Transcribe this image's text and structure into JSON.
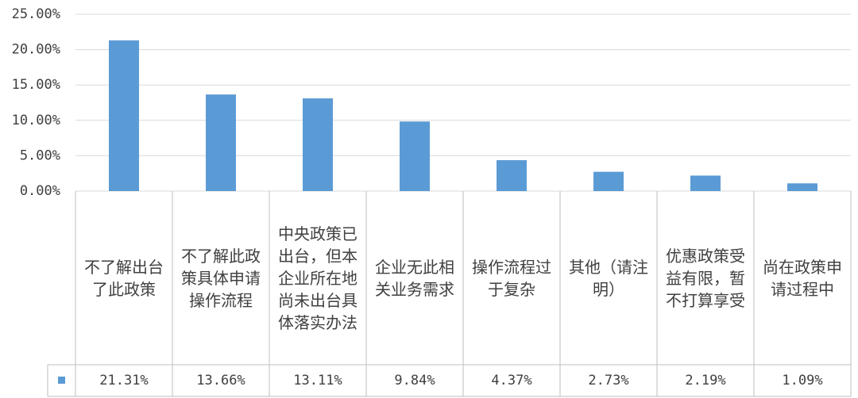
{
  "chart_data": {
    "type": "bar",
    "categories": [
      "不了解出台了此政策",
      "不了解此政策具体申请操作流程",
      "中央政策已出台，但本企业所在地尚未出台具体落实办法",
      "企业无此相关业务需求",
      "操作流程过于复杂",
      "其他（请注明）",
      "优惠政策受益有限，暂不打算享受",
      "尚在政策申请过程中"
    ],
    "values": [
      21.31,
      13.66,
      13.11,
      9.84,
      4.37,
      2.73,
      2.19,
      1.09
    ],
    "value_labels": [
      "21.31%",
      "13.66%",
      "13.11%",
      "9.84%",
      "4.37%",
      "2.73%",
      "2.19%",
      "1.09%"
    ],
    "color": "#5b9bd5",
    "ylim": [
      0,
      25
    ],
    "yticks": [
      {
        "value": 0,
        "label": "0.00%"
      },
      {
        "value": 5,
        "label": "5.00%"
      },
      {
        "value": 10,
        "label": "10.00%"
      },
      {
        "value": 15,
        "label": "15.00%"
      },
      {
        "value": 20,
        "label": "20.00%"
      },
      {
        "value": 25,
        "label": "25.00%"
      }
    ],
    "grid": true
  }
}
